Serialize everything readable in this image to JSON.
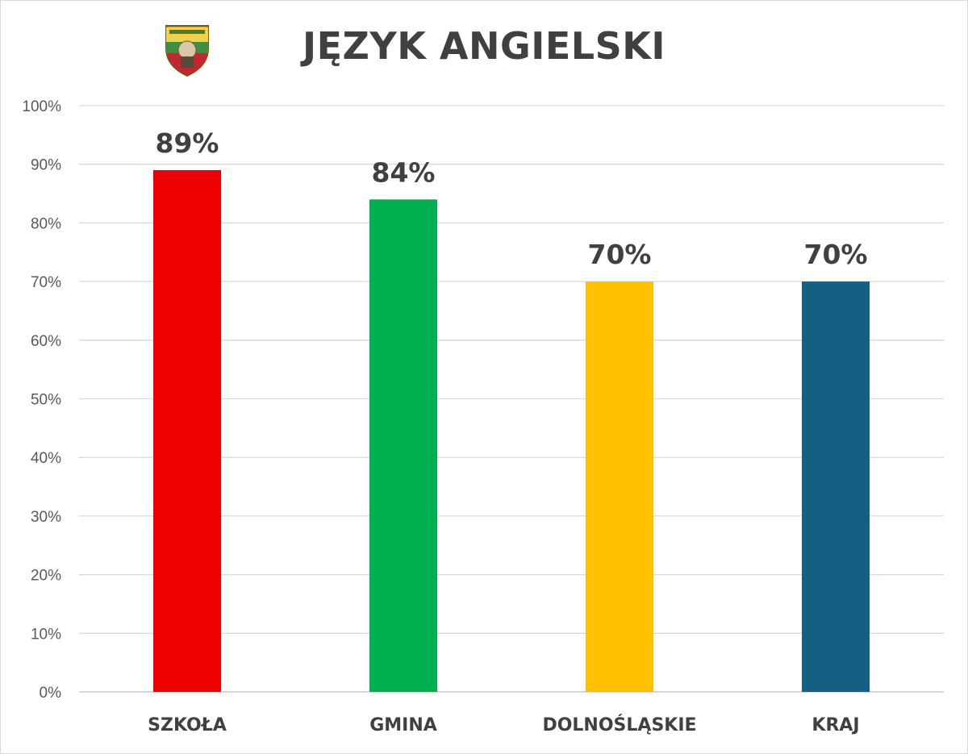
{
  "chart_data": {
    "type": "bar",
    "title": "JĘZYK ANGIELSKI",
    "categories": [
      "SZKOŁA",
      "GMINA",
      "DOLNOŚLĄSKIE",
      "KRAJ"
    ],
    "values": [
      89,
      84,
      70,
      70
    ],
    "data_labels": [
      "89%",
      "84%",
      "70%",
      "70%"
    ],
    "colors": [
      "#ee0000",
      "#00b050",
      "#ffc000",
      "#155f82"
    ],
    "ylim": [
      0,
      100
    ],
    "yticks": [
      0,
      10,
      20,
      30,
      40,
      50,
      60,
      70,
      80,
      90,
      100
    ],
    "ytick_labels": [
      "0%",
      "10%",
      "20%",
      "30%",
      "40%",
      "50%",
      "60%",
      "70%",
      "80%",
      "90%",
      "100%"
    ],
    "grid": true,
    "legend": "none"
  },
  "logo": {
    "icon": "school-crest-icon"
  }
}
